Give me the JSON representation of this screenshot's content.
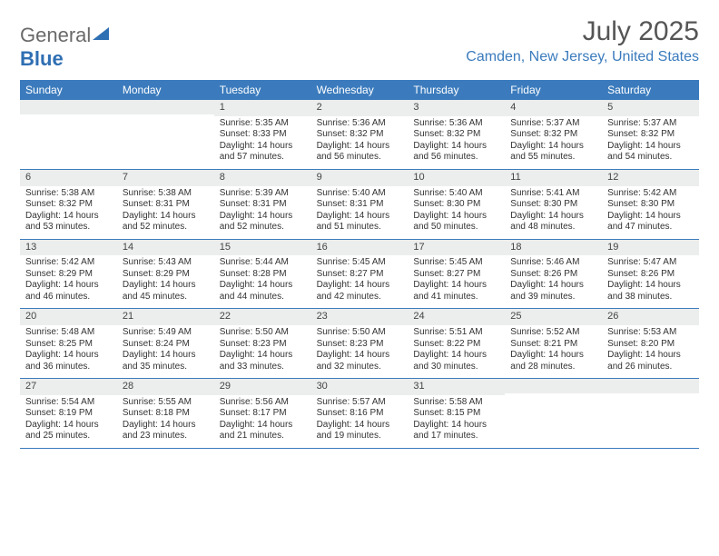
{
  "brand": {
    "part1": "General",
    "part2": "Blue"
  },
  "title": "July 2025",
  "location": "Camden, New Jersey, United States",
  "colors": {
    "header_bg": "#3b7bbd",
    "header_text": "#ffffff",
    "daynum_bg": "#eceded",
    "rule_color": "#3b7bbd",
    "brand_blue": "#2f6fb3",
    "brand_gray": "#6a6a6a"
  },
  "day_names": [
    "Sunday",
    "Monday",
    "Tuesday",
    "Wednesday",
    "Thursday",
    "Friday",
    "Saturday"
  ],
  "weeks": [
    [
      null,
      null,
      {
        "n": "1",
        "sr": "Sunrise: 5:35 AM",
        "ss": "Sunset: 8:33 PM",
        "dl": "Daylight: 14 hours and 57 minutes."
      },
      {
        "n": "2",
        "sr": "Sunrise: 5:36 AM",
        "ss": "Sunset: 8:32 PM",
        "dl": "Daylight: 14 hours and 56 minutes."
      },
      {
        "n": "3",
        "sr": "Sunrise: 5:36 AM",
        "ss": "Sunset: 8:32 PM",
        "dl": "Daylight: 14 hours and 56 minutes."
      },
      {
        "n": "4",
        "sr": "Sunrise: 5:37 AM",
        "ss": "Sunset: 8:32 PM",
        "dl": "Daylight: 14 hours and 55 minutes."
      },
      {
        "n": "5",
        "sr": "Sunrise: 5:37 AM",
        "ss": "Sunset: 8:32 PM",
        "dl": "Daylight: 14 hours and 54 minutes."
      }
    ],
    [
      {
        "n": "6",
        "sr": "Sunrise: 5:38 AM",
        "ss": "Sunset: 8:32 PM",
        "dl": "Daylight: 14 hours and 53 minutes."
      },
      {
        "n": "7",
        "sr": "Sunrise: 5:38 AM",
        "ss": "Sunset: 8:31 PM",
        "dl": "Daylight: 14 hours and 52 minutes."
      },
      {
        "n": "8",
        "sr": "Sunrise: 5:39 AM",
        "ss": "Sunset: 8:31 PM",
        "dl": "Daylight: 14 hours and 52 minutes."
      },
      {
        "n": "9",
        "sr": "Sunrise: 5:40 AM",
        "ss": "Sunset: 8:31 PM",
        "dl": "Daylight: 14 hours and 51 minutes."
      },
      {
        "n": "10",
        "sr": "Sunrise: 5:40 AM",
        "ss": "Sunset: 8:30 PM",
        "dl": "Daylight: 14 hours and 50 minutes."
      },
      {
        "n": "11",
        "sr": "Sunrise: 5:41 AM",
        "ss": "Sunset: 8:30 PM",
        "dl": "Daylight: 14 hours and 48 minutes."
      },
      {
        "n": "12",
        "sr": "Sunrise: 5:42 AM",
        "ss": "Sunset: 8:30 PM",
        "dl": "Daylight: 14 hours and 47 minutes."
      }
    ],
    [
      {
        "n": "13",
        "sr": "Sunrise: 5:42 AM",
        "ss": "Sunset: 8:29 PM",
        "dl": "Daylight: 14 hours and 46 minutes."
      },
      {
        "n": "14",
        "sr": "Sunrise: 5:43 AM",
        "ss": "Sunset: 8:29 PM",
        "dl": "Daylight: 14 hours and 45 minutes."
      },
      {
        "n": "15",
        "sr": "Sunrise: 5:44 AM",
        "ss": "Sunset: 8:28 PM",
        "dl": "Daylight: 14 hours and 44 minutes."
      },
      {
        "n": "16",
        "sr": "Sunrise: 5:45 AM",
        "ss": "Sunset: 8:27 PM",
        "dl": "Daylight: 14 hours and 42 minutes."
      },
      {
        "n": "17",
        "sr": "Sunrise: 5:45 AM",
        "ss": "Sunset: 8:27 PM",
        "dl": "Daylight: 14 hours and 41 minutes."
      },
      {
        "n": "18",
        "sr": "Sunrise: 5:46 AM",
        "ss": "Sunset: 8:26 PM",
        "dl": "Daylight: 14 hours and 39 minutes."
      },
      {
        "n": "19",
        "sr": "Sunrise: 5:47 AM",
        "ss": "Sunset: 8:26 PM",
        "dl": "Daylight: 14 hours and 38 minutes."
      }
    ],
    [
      {
        "n": "20",
        "sr": "Sunrise: 5:48 AM",
        "ss": "Sunset: 8:25 PM",
        "dl": "Daylight: 14 hours and 36 minutes."
      },
      {
        "n": "21",
        "sr": "Sunrise: 5:49 AM",
        "ss": "Sunset: 8:24 PM",
        "dl": "Daylight: 14 hours and 35 minutes."
      },
      {
        "n": "22",
        "sr": "Sunrise: 5:50 AM",
        "ss": "Sunset: 8:23 PM",
        "dl": "Daylight: 14 hours and 33 minutes."
      },
      {
        "n": "23",
        "sr": "Sunrise: 5:50 AM",
        "ss": "Sunset: 8:23 PM",
        "dl": "Daylight: 14 hours and 32 minutes."
      },
      {
        "n": "24",
        "sr": "Sunrise: 5:51 AM",
        "ss": "Sunset: 8:22 PM",
        "dl": "Daylight: 14 hours and 30 minutes."
      },
      {
        "n": "25",
        "sr": "Sunrise: 5:52 AM",
        "ss": "Sunset: 8:21 PM",
        "dl": "Daylight: 14 hours and 28 minutes."
      },
      {
        "n": "26",
        "sr": "Sunrise: 5:53 AM",
        "ss": "Sunset: 8:20 PM",
        "dl": "Daylight: 14 hours and 26 minutes."
      }
    ],
    [
      {
        "n": "27",
        "sr": "Sunrise: 5:54 AM",
        "ss": "Sunset: 8:19 PM",
        "dl": "Daylight: 14 hours and 25 minutes."
      },
      {
        "n": "28",
        "sr": "Sunrise: 5:55 AM",
        "ss": "Sunset: 8:18 PM",
        "dl": "Daylight: 14 hours and 23 minutes."
      },
      {
        "n": "29",
        "sr": "Sunrise: 5:56 AM",
        "ss": "Sunset: 8:17 PM",
        "dl": "Daylight: 14 hours and 21 minutes."
      },
      {
        "n": "30",
        "sr": "Sunrise: 5:57 AM",
        "ss": "Sunset: 8:16 PM",
        "dl": "Daylight: 14 hours and 19 minutes."
      },
      {
        "n": "31",
        "sr": "Sunrise: 5:58 AM",
        "ss": "Sunset: 8:15 PM",
        "dl": "Daylight: 14 hours and 17 minutes."
      },
      null,
      null
    ]
  ]
}
